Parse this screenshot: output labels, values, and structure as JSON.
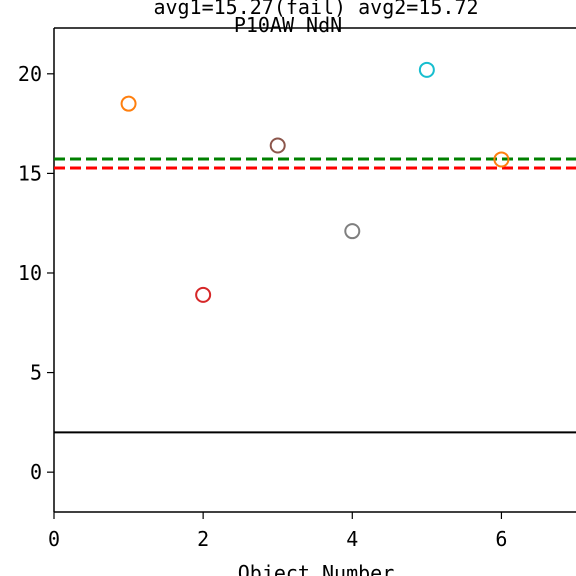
{
  "chart_data": {
    "type": "scatter",
    "title_line1": "avg1=15.27(fail) avg2=15.72",
    "title_line2": "P10AW NdN",
    "xlabel": "Object Number",
    "ylabel": "",
    "xlim": [
      0,
      7
    ],
    "ylim": [
      -2,
      22.3
    ],
    "xticks": [
      0,
      2,
      4,
      6
    ],
    "yticks": [
      0,
      5,
      10,
      15,
      20
    ],
    "grid": false,
    "points": [
      {
        "x": 1,
        "y": 18.5,
        "color": "#ff7f0e"
      },
      {
        "x": 2,
        "y": 8.9,
        "color": "#d62728"
      },
      {
        "x": 3,
        "y": 16.4,
        "color": "#8c564b"
      },
      {
        "x": 4,
        "y": 12.1,
        "color": "#7f7f7f"
      },
      {
        "x": 5,
        "y": 20.2,
        "color": "#17becf"
      },
      {
        "x": 6,
        "y": 15.7,
        "color": "#ff7f0e"
      }
    ],
    "hlines": [
      {
        "y": 15.72,
        "color": "#008000",
        "style": "dashed"
      },
      {
        "y": 15.27,
        "color": "#ff0000",
        "style": "dashed"
      },
      {
        "y": 2,
        "color": "#000000",
        "style": "solid"
      }
    ]
  }
}
